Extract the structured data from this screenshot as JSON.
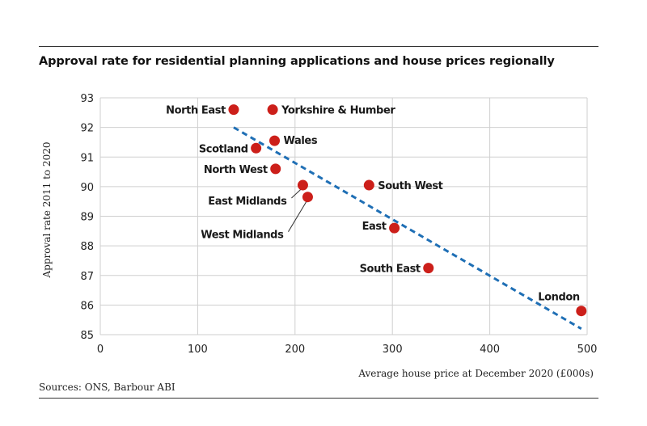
{
  "title": "Approval rate for residential planning applications and house prices regionally",
  "source": "Sources: ONS, Barbour ABI",
  "colors": {
    "point": "#cc1f1a",
    "trend": "#1f6fb5",
    "grid": "#cfcfcf"
  },
  "chart_data": {
    "type": "scatter",
    "xlabel": "Average house price at December 2020 (£000s)",
    "ylabel": "Approval rate 2011 to 2020",
    "xlim": [
      0,
      500
    ],
    "ylim": [
      85,
      93
    ],
    "xticks": [
      0,
      100,
      200,
      300,
      400,
      500
    ],
    "yticks": [
      85,
      86,
      87,
      88,
      89,
      90,
      91,
      92,
      93
    ],
    "grid": true,
    "points": [
      {
        "label": "North East",
        "x": 137,
        "y": 92.6
      },
      {
        "label": "Yorkshire & Humber",
        "x": 177,
        "y": 92.6
      },
      {
        "label": "Wales",
        "x": 179,
        "y": 91.55
      },
      {
        "label": "Scotland",
        "x": 160,
        "y": 91.3
      },
      {
        "label": "North West",
        "x": 180,
        "y": 90.6
      },
      {
        "label": "East Midlands",
        "x": 208,
        "y": 90.05
      },
      {
        "label": "West Midlands",
        "x": 213,
        "y": 89.65
      },
      {
        "label": "South West",
        "x": 276,
        "y": 90.05
      },
      {
        "label": "East",
        "x": 302,
        "y": 88.6
      },
      {
        "label": "South East",
        "x": 337,
        "y": 87.25
      },
      {
        "label": "London",
        "x": 494,
        "y": 85.8
      }
    ],
    "trendline": {
      "x": [
        137,
        494
      ],
      "y": [
        92.0,
        85.2
      ],
      "style": "dashed"
    }
  }
}
